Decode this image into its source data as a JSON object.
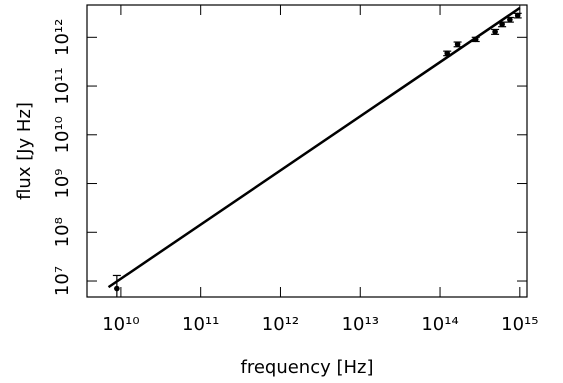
{
  "chart_data": {
    "type": "scatter",
    "xlabel": "frequency [Hz]",
    "ylabel": "flux [Jy Hz]",
    "log_x": true,
    "log_y": true,
    "color": "#000000",
    "xlim": [
      3760000000.0,
      1230000000000000.0
    ],
    "ylim": [
      4700000.0,
      4600000000000.0
    ],
    "xticks": [
      {
        "value": 10000000000.0,
        "label": "10¹⁰"
      },
      {
        "value": 100000000000.0,
        "label": "10¹¹"
      },
      {
        "value": 1000000000000.0,
        "label": "10¹²"
      },
      {
        "value": 10000000000000.0,
        "label": "10¹³"
      },
      {
        "value": 100000000000000.0,
        "label": "10¹⁴"
      },
      {
        "value": 1000000000000000.0,
        "label": "10¹⁵"
      }
    ],
    "yticks": [
      {
        "value": 10000000.0,
        "label": "10⁷"
      },
      {
        "value": 100000000.0,
        "label": "10⁸"
      },
      {
        "value": 1000000000.0,
        "label": "10⁹"
      },
      {
        "value": 10000000000.0,
        "label": "10¹⁰"
      },
      {
        "value": 100000000000.0,
        "label": "10¹¹"
      },
      {
        "value": 1000000000000.0,
        "label": "10¹²"
      }
    ],
    "x": [
      8900000000.0,
      123000000000000.0,
      166000000000000.0,
      280000000000000.0,
      490000000000000.0,
      600000000000000.0,
      750000000000000.0,
      940000000000000.0
    ],
    "values": [
      7000000.0,
      470000000000.0,
      720000000000.0,
      910000000000.0,
      1300000000000.0,
      1850000000000.0,
      2300000000000.0,
      2800000000000.0
    ],
    "yerr": [
      6000000.0,
      50000000000.0,
      80000000000.0,
      90000000000.0,
      150000000000.0,
      200000000000.0,
      250000000000.0,
      300000000000.0
    ],
    "fit": {
      "x": [
        7000000000.0,
        1000000000000000.0
      ],
      "y": [
        7500000.0,
        4000000000000.0
      ]
    }
  }
}
